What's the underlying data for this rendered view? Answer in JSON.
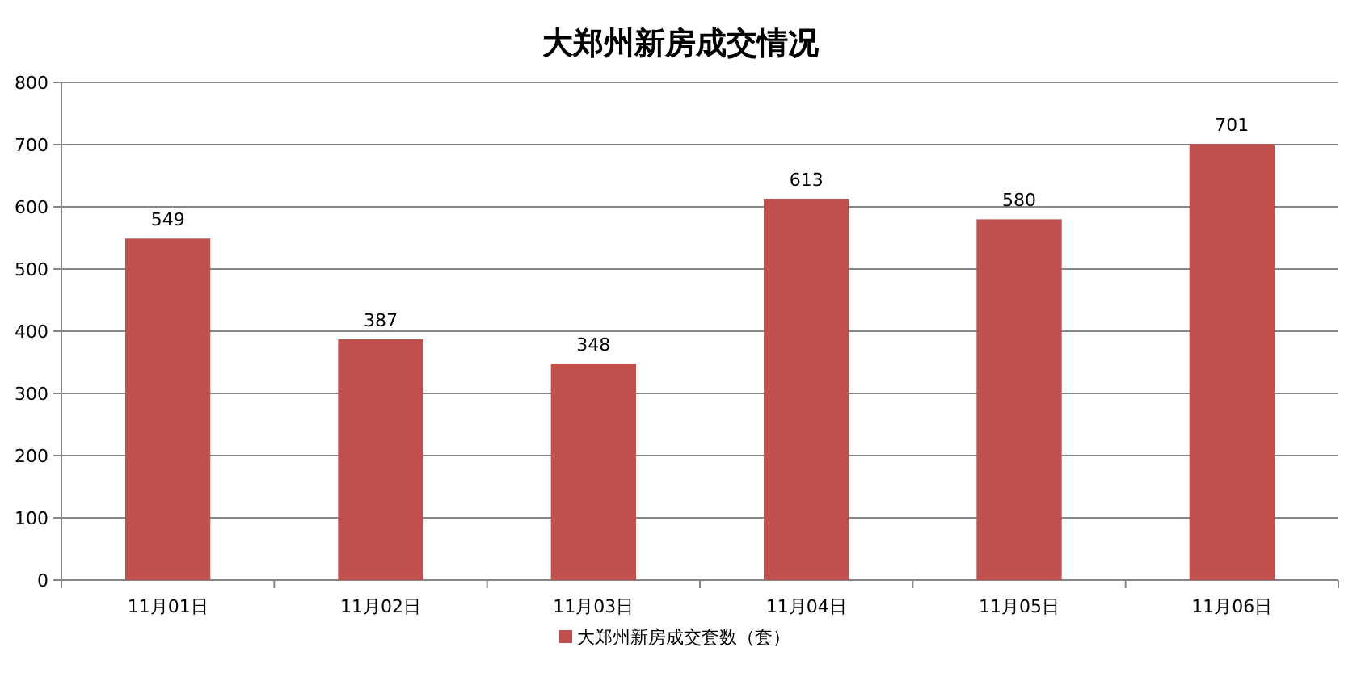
{
  "chart_data": {
    "type": "bar",
    "title": "大郑州新房成交情况",
    "categories": [
      "11月01日",
      "11月02日",
      "11月03日",
      "11月04日",
      "11月05日",
      "11月06日"
    ],
    "series": [
      {
        "name": "大郑州新房成交套数（套）",
        "color": "#c0504d",
        "values": [
          549,
          387,
          348,
          613,
          580,
          701
        ]
      }
    ],
    "ylim": [
      0,
      800
    ],
    "yticks": [
      0,
      100,
      200,
      300,
      400,
      500,
      600,
      700,
      800
    ],
    "grid": "y",
    "legend": "bottom",
    "data_labels": true
  }
}
